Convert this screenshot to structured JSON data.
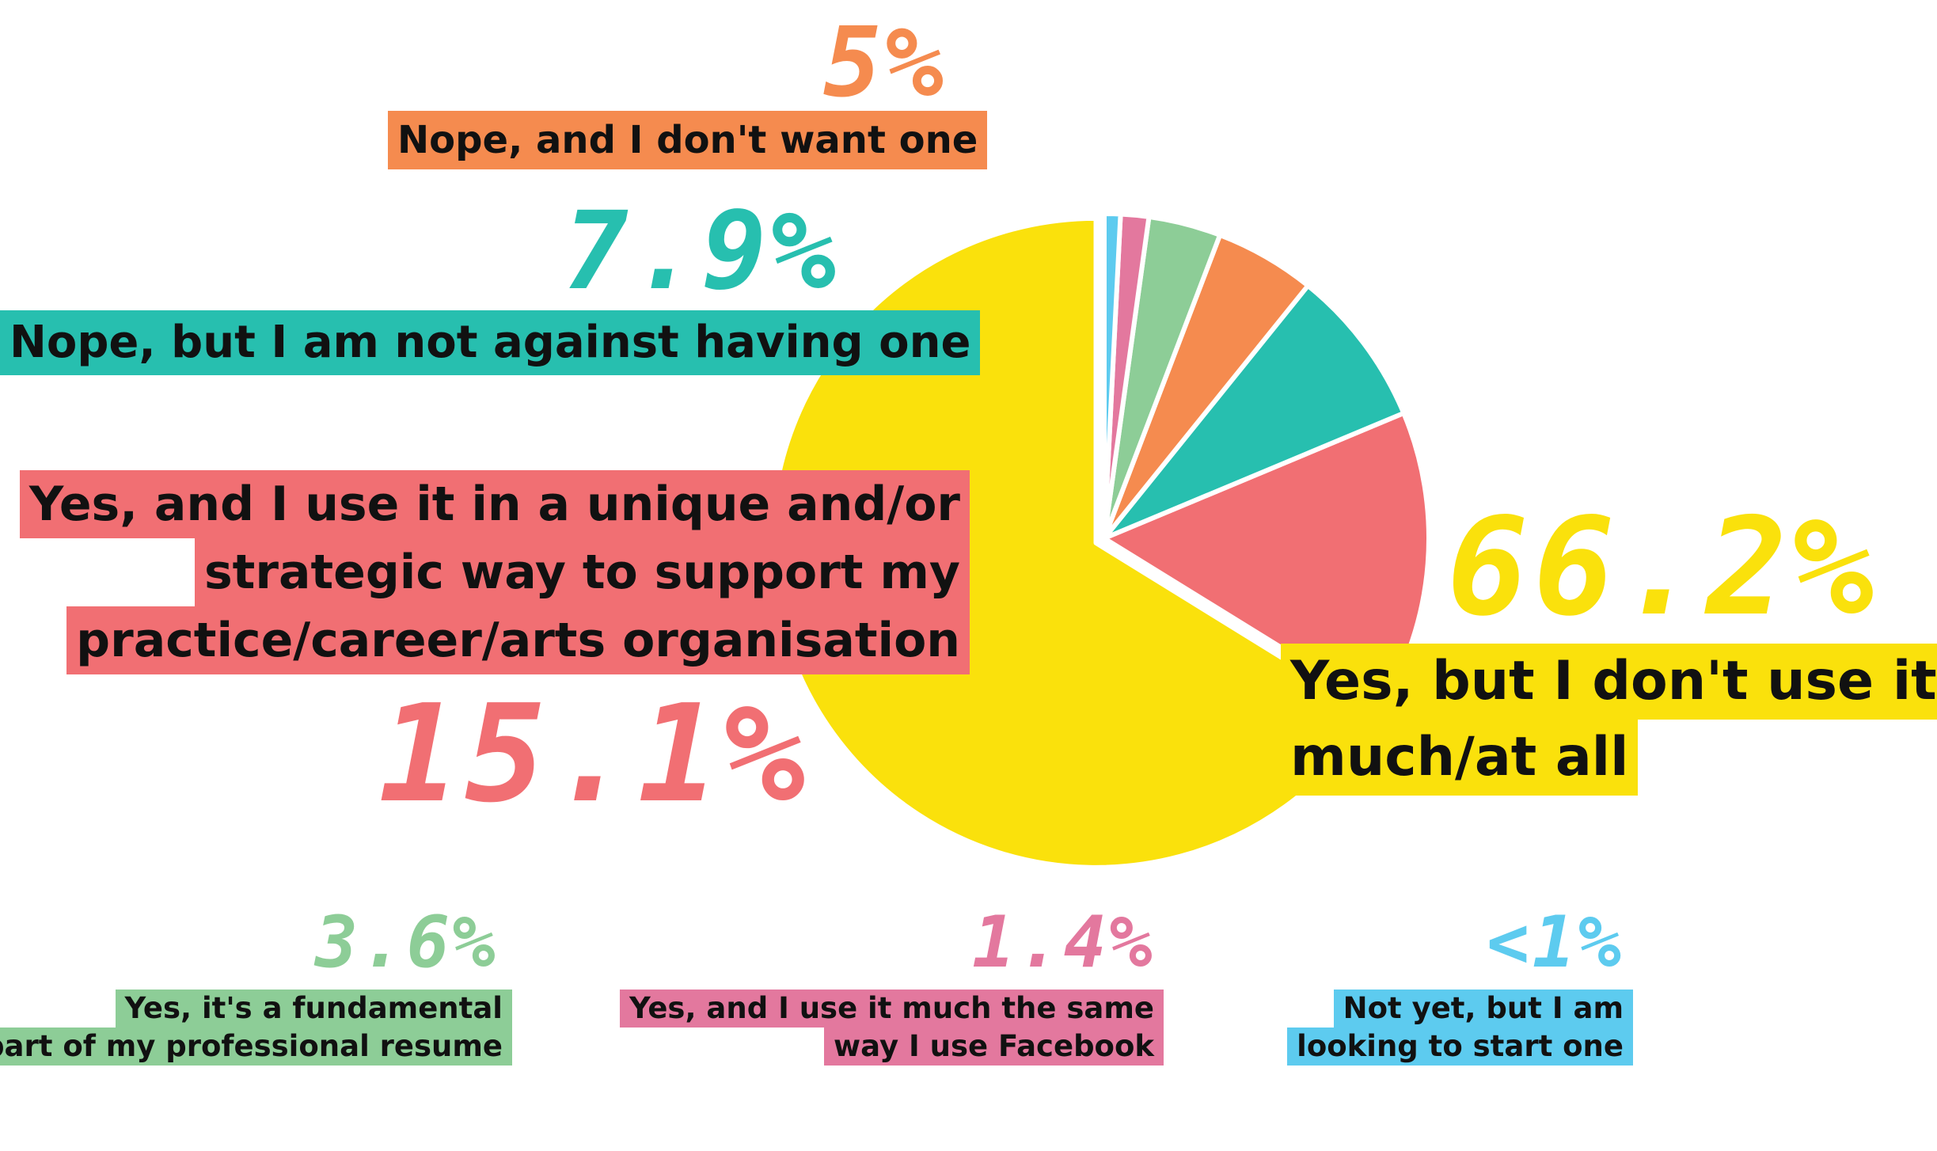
{
  "chart_data": {
    "type": "pie",
    "title": "",
    "legend": "none",
    "slices": [
      {
        "label": "Yes, but I don't use it much/at all",
        "value": 66.2,
        "display": "66.2%",
        "color": "#FAE10C"
      },
      {
        "label": "Yes, and I use it in a unique and/or strategic way to support my practice/career/arts organisation",
        "value": 15.1,
        "display": "15.1%",
        "color": "#F16F73"
      },
      {
        "label": "Nope, but I am not against having one",
        "value": 7.9,
        "display": "7.9%",
        "color": "#27BFAF"
      },
      {
        "label": "Nope, and I don't want one",
        "value": 5,
        "display": "5%",
        "color": "#F58B4F"
      },
      {
        "label": "Yes, it's a fundamental part of my professional resume",
        "value": 3.6,
        "display": "3.6%",
        "color": "#8DCD97"
      },
      {
        "label": "Yes, and I use it much the same way I use Facebook",
        "value": 1.4,
        "display": "1.4%",
        "color": "#E3789E"
      },
      {
        "label": "Not yet, but I am looking to start one",
        "value": 0.8,
        "display": "<1%",
        "color": "#5DCBEF"
      }
    ]
  },
  "labels": {
    "yes_not_much": {
      "pct": "66.2%",
      "line1": "Yes, but I don't use it",
      "line2": "much/at all"
    },
    "yes_strategic": {
      "pct": "15.1%",
      "line1": "Yes, and I use it in a unique and/or",
      "line2": "strategic way to support my",
      "line3": "practice/career/arts organisation"
    },
    "nope_not_against": {
      "pct": "7.9%",
      "line1": "Nope, but I am not against having one"
    },
    "nope_dont_want": {
      "pct": "5%",
      "line1": "Nope, and I don't want one"
    },
    "yes_fundamental": {
      "pct": "3.6%",
      "line1": "Yes, it's a fundamental",
      "line2": "part of my professional resume"
    },
    "yes_facebook": {
      "pct": "1.4%",
      "line1": "Yes, and I use it much the same",
      "line2": "way I use Facebook"
    },
    "not_yet": {
      "pct": "<1%",
      "line1": "Not yet, but I am",
      "line2": "looking to start one"
    }
  }
}
